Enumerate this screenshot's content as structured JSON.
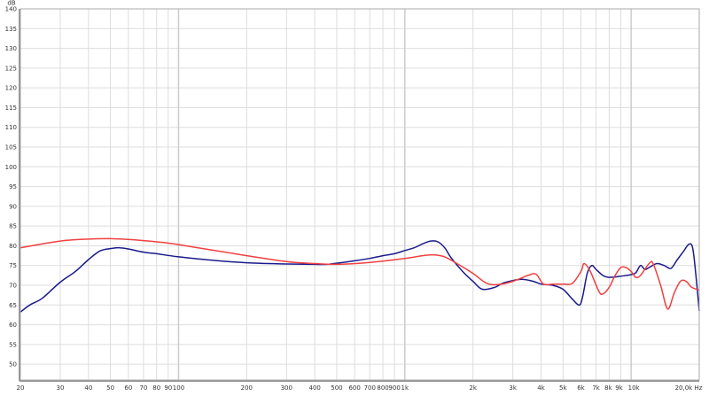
{
  "chart_data": {
    "type": "line",
    "title": "",
    "xlabel": "",
    "ylabel": "dB",
    "x_unit": "Hz",
    "x_scale": "log",
    "xlim": [
      20,
      20000
    ],
    "ylim": [
      46,
      140
    ],
    "grid": true,
    "legend": "none",
    "x_ticks": [
      20,
      30,
      40,
      50,
      60,
      70,
      80,
      90,
      100,
      200,
      300,
      400,
      500,
      600,
      700,
      800,
      900,
      1000,
      2000,
      3000,
      4000,
      5000,
      6000,
      7000,
      8000,
      9000,
      10000,
      20000
    ],
    "x_tick_labels": [
      "20",
      "30",
      "40",
      "50",
      "60",
      "70",
      "80",
      "90",
      "100",
      "200",
      "300",
      "400",
      "500",
      "600",
      "700",
      "800",
      "900",
      "1k",
      "2k",
      "3k",
      "4k",
      "5k",
      "6k",
      "7k",
      "8k",
      "9k",
      "10k",
      "20,0k Hz"
    ],
    "y_ticks": [
      50,
      55,
      60,
      65,
      70,
      75,
      80,
      85,
      90,
      95,
      100,
      105,
      110,
      115,
      120,
      125,
      130,
      135,
      140
    ],
    "y_tick_labels": [
      "50",
      "55",
      "60",
      "65",
      "70",
      "75",
      "80",
      "85",
      "90",
      "95",
      "100",
      "105",
      "110",
      "115",
      "120",
      "125",
      "130",
      "135",
      "140"
    ],
    "series": [
      {
        "color": "#1a1a8c",
        "x": [
          20,
          22,
          25,
          30,
          35,
          40,
          45,
          50,
          55,
          60,
          70,
          80,
          100,
          150,
          200,
          300,
          400,
          450,
          500,
          600,
          700,
          800,
          900,
          1000,
          1100,
          1200,
          1300,
          1400,
          1500,
          1600,
          1800,
          2000,
          2200,
          2500,
          2700,
          3000,
          3300,
          3700,
          4000,
          4500,
          5000,
          5500,
          5900,
          6100,
          6400,
          6700,
          7000,
          7500,
          8000,
          9000,
          10000,
          10500,
          11000,
          11500,
          12000,
          13000,
          14000,
          15000,
          16000,
          17000,
          18000,
          18700,
          19300,
          20000
        ],
        "y": [
          63.2,
          65,
          66.7,
          70.8,
          73.5,
          76.5,
          78.7,
          79.3,
          79.5,
          79.2,
          78.4,
          78,
          77.2,
          76.2,
          75.7,
          75.4,
          75.3,
          75.3,
          75.6,
          76.2,
          76.8,
          77.5,
          78,
          78.8,
          79.5,
          80.5,
          81.2,
          81,
          79.5,
          77,
          73.5,
          71,
          69,
          69.5,
          70.5,
          71.2,
          71.5,
          71,
          70.3,
          70,
          69,
          66.5,
          65,
          67,
          73,
          75,
          74,
          72.5,
          72,
          72.3,
          72.7,
          73.2,
          75,
          74,
          74.5,
          75.5,
          75,
          74.3,
          76.5,
          78.5,
          80.4,
          79.5,
          73,
          63.5
        ]
      },
      {
        "color": "#f04040",
        "x": [
          20,
          30,
          40,
          50,
          60,
          80,
          100,
          200,
          300,
          400,
          500,
          700,
          1000,
          1200,
          1350,
          1500,
          1700,
          2000,
          2300,
          2600,
          3000,
          3500,
          3800,
          4100,
          4500,
          5000,
          5500,
          6000,
          6200,
          6600,
          7200,
          7500,
          8000,
          8500,
          9000,
          9500,
          10000,
          10500,
          11000,
          12000,
          12500,
          13500,
          14500,
          15500,
          16500,
          17500,
          18500,
          20000
        ],
        "y": [
          79.5,
          81.2,
          81.7,
          81.8,
          81.6,
          81,
          80.3,
          77.5,
          76,
          75.5,
          75.3,
          75.8,
          76.8,
          77.5,
          77.7,
          77.2,
          75.5,
          73,
          70.5,
          70.2,
          71,
          72.5,
          72.8,
          70.3,
          70.3,
          70.3,
          70.5,
          73.5,
          75.5,
          73.5,
          68.5,
          67.8,
          69.5,
          72.5,
          74.5,
          74.5,
          73.5,
          72,
          72.5,
          75.5,
          75.5,
          70,
          64,
          68,
          71,
          71,
          69.5,
          68.8
        ]
      }
    ]
  }
}
